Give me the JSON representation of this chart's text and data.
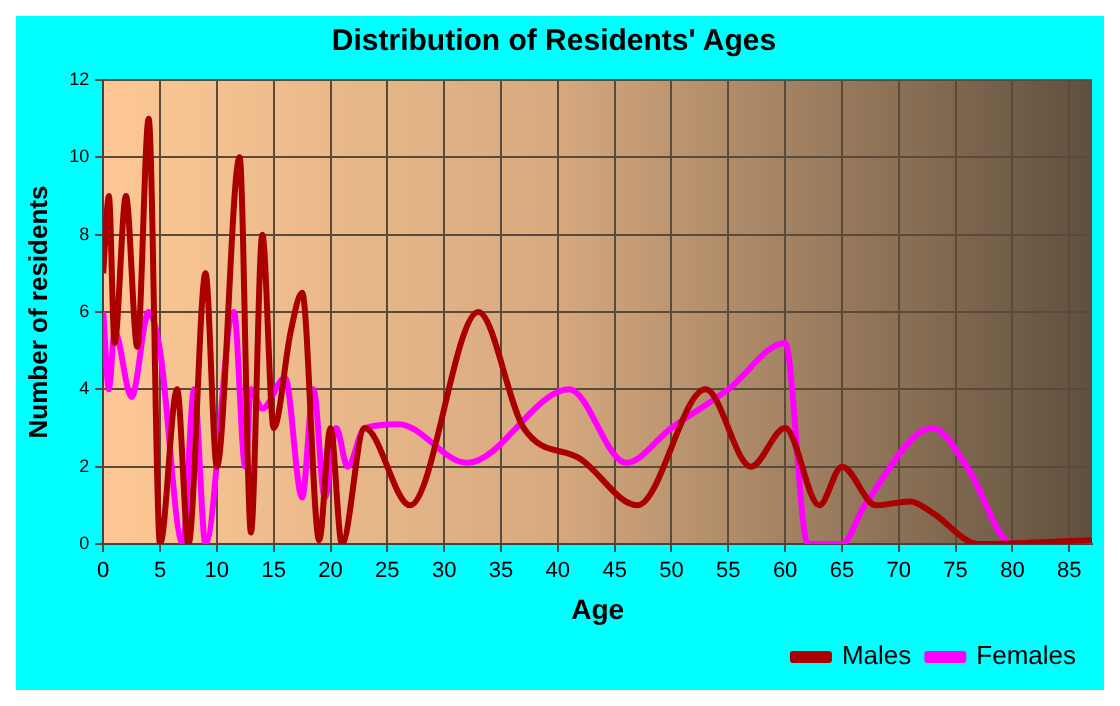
{
  "chart_data": {
    "type": "line",
    "title": "Distribution of Residents' Ages",
    "xlabel": "Age",
    "ylabel": "Number of residents",
    "xlim": [
      0,
      87
    ],
    "xticks": [
      0,
      5,
      10,
      15,
      20,
      25,
      30,
      35,
      40,
      45,
      50,
      55,
      60,
      65,
      70,
      75,
      80,
      85
    ],
    "ylim": [
      0,
      12
    ],
    "yticks": [
      0,
      2,
      4,
      6,
      8,
      10,
      12
    ],
    "grid": true,
    "legend": "bottom right",
    "marker": "none",
    "line_style": "solid",
    "series": [
      {
        "name": "Males",
        "color": "#aa0000",
        "x": [
          0,
          0.5,
          1,
          2,
          3,
          4,
          5,
          6.5,
          7.5,
          9,
          10,
          12,
          13,
          14,
          15,
          16.5,
          17.5,
          19,
          20,
          21,
          23,
          27,
          33,
          37,
          42,
          47,
          53,
          57,
          60,
          63,
          65,
          68,
          71,
          73,
          77,
          87
        ],
        "values": [
          7,
          9,
          5.2,
          9,
          5.1,
          11,
          0,
          4,
          0,
          7,
          2,
          10,
          0.3,
          8,
          3,
          5.5,
          6.5,
          0.1,
          3,
          0,
          3,
          1,
          6,
          3,
          2.2,
          1,
          4,
          2,
          3,
          1,
          2,
          1,
          1.1,
          0.8,
          0,
          0.1
        ]
      },
      {
        "name": "Females",
        "color": "#ff00ff",
        "x": [
          0,
          0.5,
          1,
          2.5,
          4,
          5,
          7,
          8,
          9,
          11.5,
          12.5,
          13,
          14,
          16,
          17.5,
          18.5,
          19.5,
          20.5,
          21.5,
          23,
          26,
          32,
          41,
          46,
          50,
          55,
          60,
          62,
          65,
          67,
          73,
          76,
          80,
          87
        ],
        "values": [
          6,
          4,
          5.5,
          3.8,
          6,
          5,
          0,
          4,
          0,
          6,
          2,
          4,
          3.5,
          4.3,
          1.2,
          4,
          1.2,
          3,
          2,
          3,
          3.1,
          2.1,
          4,
          2.1,
          3,
          4,
          5.2,
          0,
          0,
          1,
          3,
          2,
          0,
          0
        ]
      }
    ]
  }
}
